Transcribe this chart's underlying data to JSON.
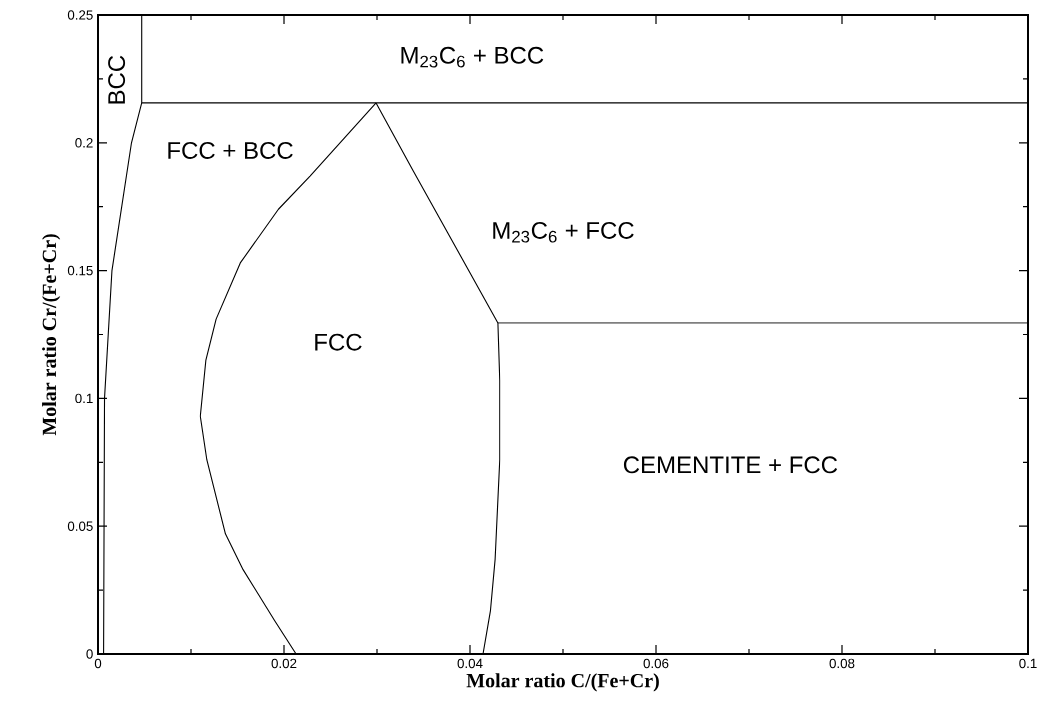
{
  "chart_data": {
    "type": "line",
    "xlabel": "Molar ratio C/(Fe+Cr)",
    "ylabel": "Molar ratio Cr/(Fe+Cr)",
    "xlim": [
      0,
      0.1
    ],
    "ylim": [
      0,
      0.25
    ],
    "xticks": [
      0,
      0.02,
      0.04,
      0.06,
      0.08,
      0.1
    ],
    "yticks": [
      0,
      0.05,
      0.1,
      0.15,
      0.2,
      0.25
    ],
    "marker": "none",
    "line_style": "solid",
    "grid": false,
    "series": [
      {
        "color": "#000000",
        "x": [
          0.0006,
          0.0007,
          0.0015,
          0.0036,
          0.0047,
          0.0047
        ],
        "values": [
          0,
          0.1,
          0.15,
          0.2,
          0.2156,
          0.25
        ]
      },
      {
        "color": "#000000",
        "x": [
          0.0047,
          0.1
        ],
        "values": [
          0.2156,
          0.2156
        ]
      },
      {
        "color": "#000000",
        "x": [
          0.0299,
          0.0228,
          0.0194,
          0.0153,
          0.0127,
          0.0116,
          0.011,
          0.0117,
          0.0137,
          0.0156,
          0.019,
          0.0213
        ],
        "values": [
          0.2156,
          0.187,
          0.174,
          0.153,
          0.131,
          0.115,
          0.093,
          0.076,
          0.047,
          0.033,
          0.013,
          0
        ]
      },
      {
        "color": "#000000",
        "x": [
          0.0299,
          0.0339,
          0.043,
          0.0432,
          0.0432,
          0.0427,
          0.0422,
          0.0414
        ],
        "values": [
          0.2156,
          0.189,
          0.1295,
          0.107,
          0.076,
          0.037,
          0.017,
          0
        ]
      },
      {
        "color": "#000000",
        "x": [
          0.043,
          0.1
        ],
        "values": [
          0.1295,
          0.1295
        ]
      }
    ],
    "annotations": [
      "M$_{23}$C$_{6}$ + BCC",
      "BCC",
      "FCC + BCC",
      "M$_{23}$C$_{6}$ + FCC",
      "FCC",
      "CEMENTITE + FCC"
    ]
  }
}
